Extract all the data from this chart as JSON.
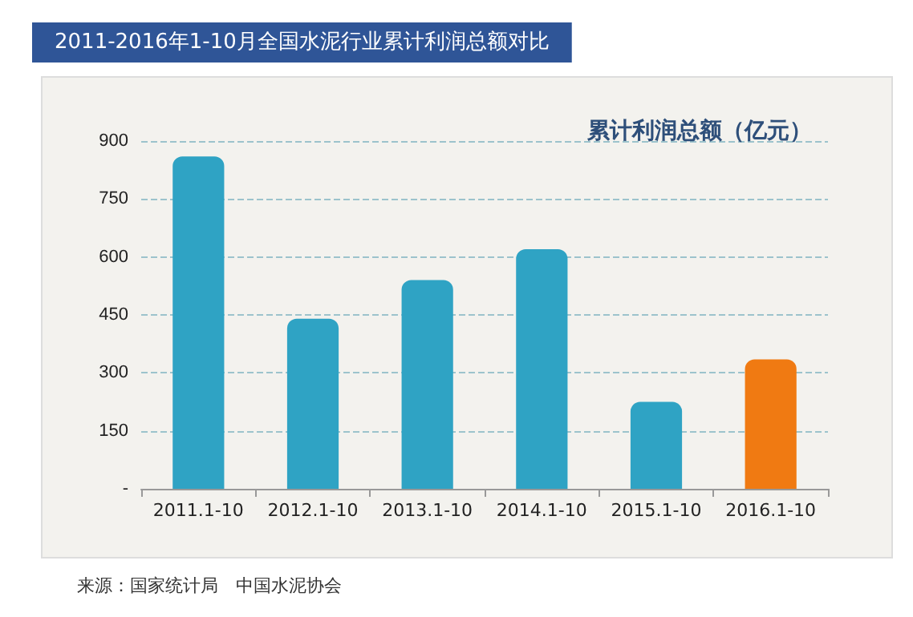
{
  "chart_data": {
    "type": "bar",
    "title": "2011-2016年1-10月全国水泥行业累计利润总额对比",
    "categories": [
      "2011.1-10",
      "2012.1-10",
      "2013.1-10",
      "2014.1-10",
      "2015.1-10",
      "2016.1-10"
    ],
    "series": [
      {
        "name": "累计利润总额（亿元）",
        "values": [
          860,
          440,
          540,
          620,
          225,
          335
        ]
      }
    ],
    "colors": [
      "#2fa3c4",
      "#2fa3c4",
      "#2fa3c4",
      "#2fa3c4",
      "#2fa3c4",
      "#f07a12"
    ],
    "ylim": [
      0,
      900
    ],
    "yticks": [
      {
        "value": 0,
        "label": "-"
      },
      150,
      300,
      450,
      600,
      750,
      900
    ],
    "grid": "y",
    "legend": "top right",
    "annotations": [
      "来源：国家统计局　中国水泥协会"
    ]
  }
}
